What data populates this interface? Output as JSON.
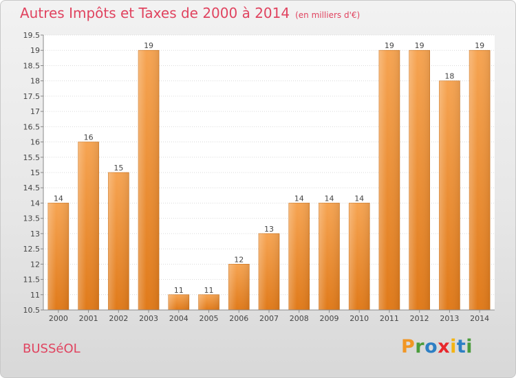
{
  "title": "Autres Impôts et Taxes de 2000 à 2014",
  "unit": "(en milliers d'€)",
  "commune": "BUSSéOL",
  "logo": {
    "letters": [
      "P",
      "r",
      "o",
      "x",
      "i",
      "t",
      "i"
    ],
    "colors": [
      "#f19624",
      "#4b9c3c",
      "#2d7fc4",
      "#e8272c",
      "#f4b412",
      "#2d7fc4",
      "#4b9c3c"
    ]
  },
  "chart_data": {
    "type": "bar",
    "categories": [
      "2000",
      "2001",
      "2002",
      "2003",
      "2004",
      "2005",
      "2006",
      "2007",
      "2008",
      "2009",
      "2010",
      "2011",
      "2012",
      "2013",
      "2014"
    ],
    "values": [
      14,
      16,
      15,
      19,
      11,
      11,
      12,
      13,
      14,
      14,
      14,
      19,
      19,
      18,
      19
    ],
    "ylim": [
      10.5,
      19.5
    ],
    "yticks": [
      "10.5",
      "11",
      "11.5",
      "12",
      "12.5",
      "13",
      "13.5",
      "14",
      "14.5",
      "15",
      "15.5",
      "16",
      "16.5",
      "17",
      "17.5",
      "18",
      "18.5",
      "19",
      "19.5"
    ],
    "grid": true,
    "bar_color": "#f0963a"
  }
}
